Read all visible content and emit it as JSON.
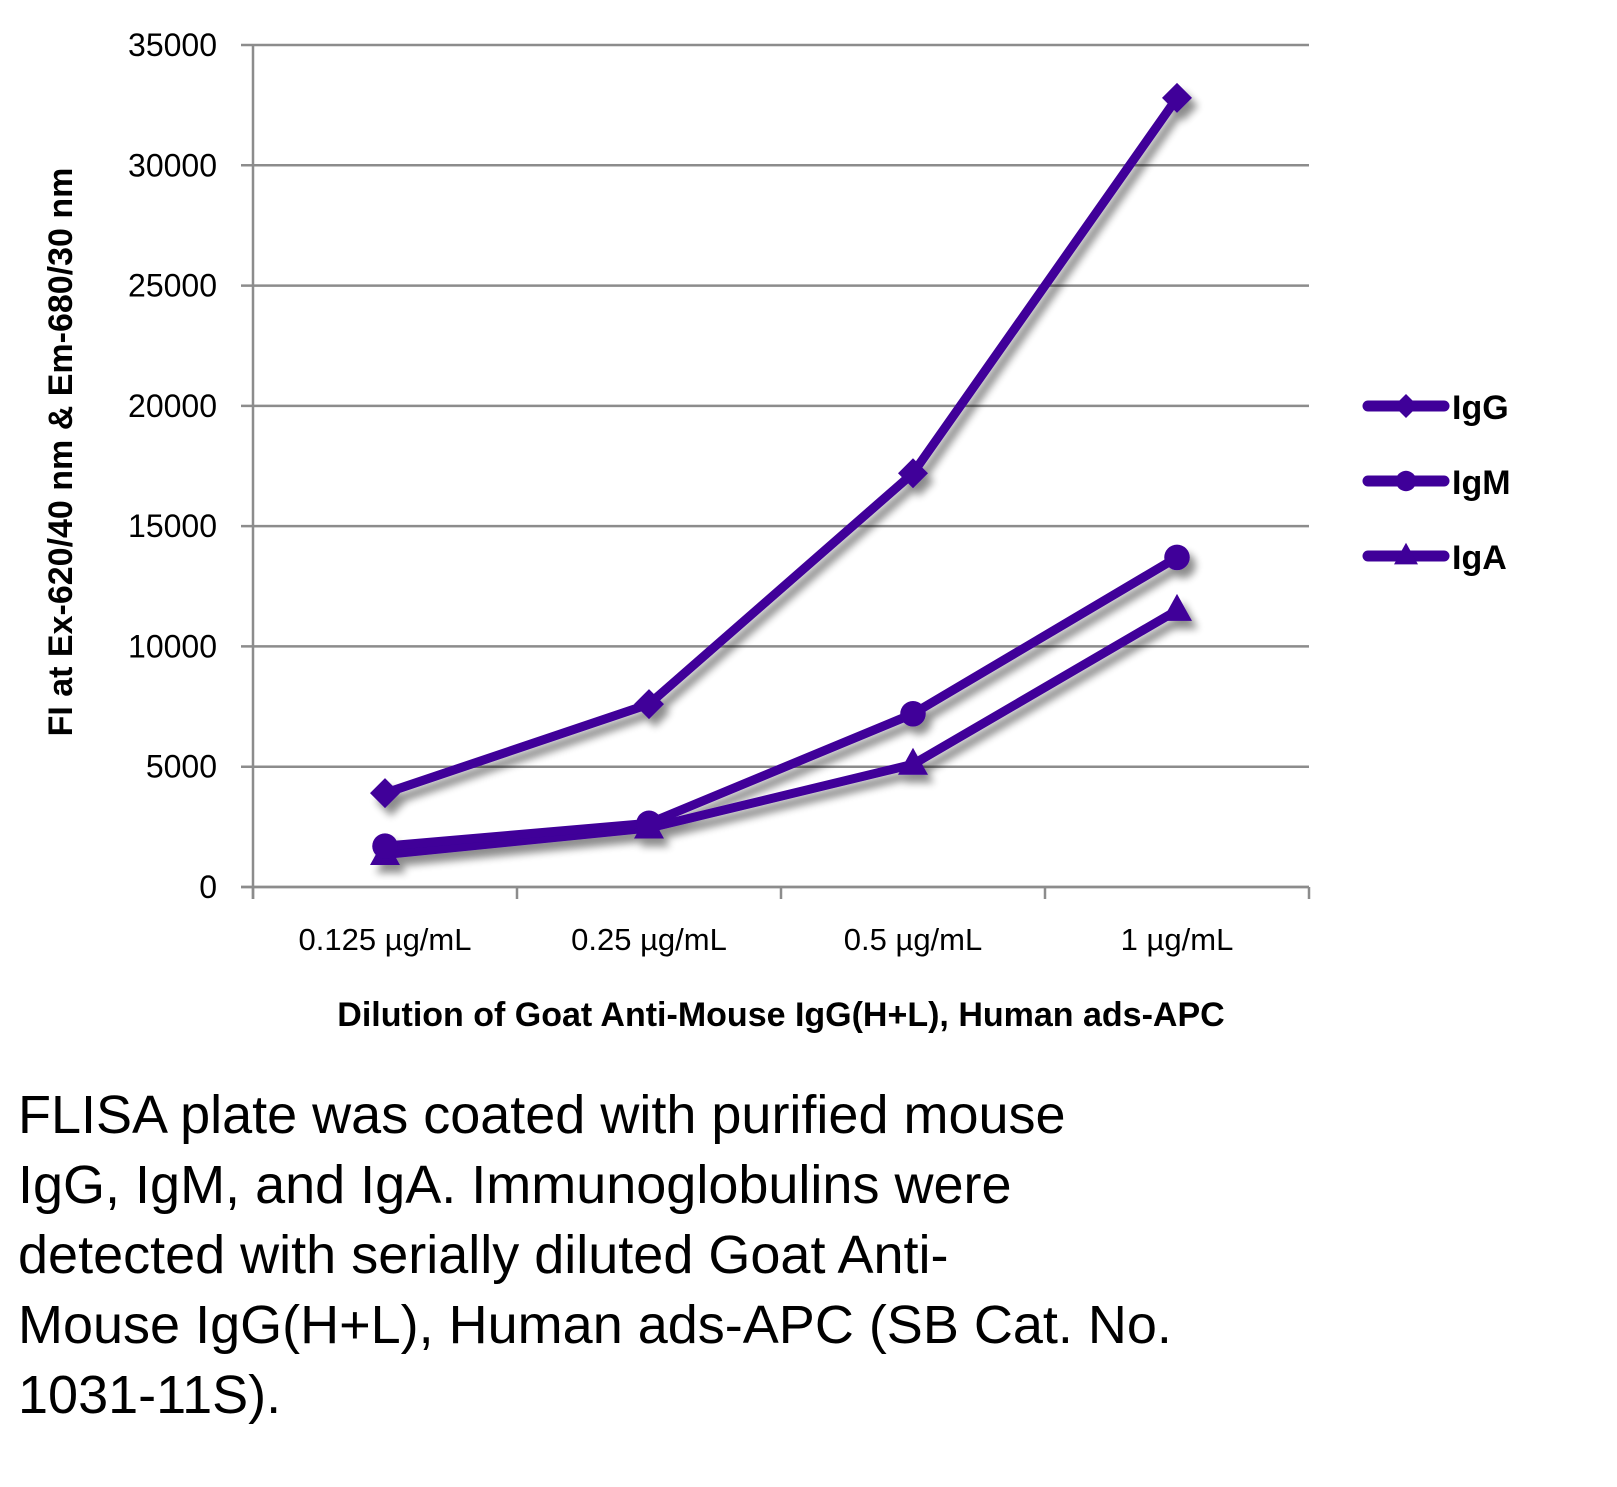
{
  "chart_data": {
    "type": "line",
    "title": "",
    "xlabel": "Dilution of Goat Anti-Mouse IgG(H+L), Human ads-APC",
    "ylabel": "FI at Ex-620/40 nm & Em-680/30 nm",
    "categories": [
      "0.125 µg/mL",
      "0.25 µg/mL",
      "0.5 µg/mL",
      "1 µg/mL"
    ],
    "ylim": [
      0,
      35000
    ],
    "yticks": [
      0,
      5000,
      10000,
      15000,
      20000,
      25000,
      30000,
      35000
    ],
    "grid": true,
    "legend_position": "right",
    "series": [
      {
        "name": "IgG",
        "marker": "diamond",
        "color": "#3f0099",
        "values": [
          3900,
          7600,
          17200,
          32800
        ]
      },
      {
        "name": "IgM",
        "marker": "circle",
        "color": "#3f0099",
        "values": [
          1700,
          2650,
          7200,
          13700
        ]
      },
      {
        "name": "IgA",
        "marker": "triangle",
        "color": "#3f0099",
        "values": [
          1350,
          2450,
          5100,
          11500
        ]
      }
    ]
  },
  "caption": "FLISA plate was coated with purified mouse IgG, IgM, and IgA.  Immunoglobulins were detected with serially diluted Goat Anti-Mouse IgG(H+L), Human ads-APC (SB Cat. No. 1031-11S).",
  "caption_lines": [
    "FLISA plate was coated with purified mouse",
    "IgG, IgM, and IgA.  Immunoglobulins were",
    "detected with serially diluted Goat Anti-",
    "Mouse IgG(H+L), Human ads-APC (SB Cat. No.",
    "1031-11S)."
  ]
}
